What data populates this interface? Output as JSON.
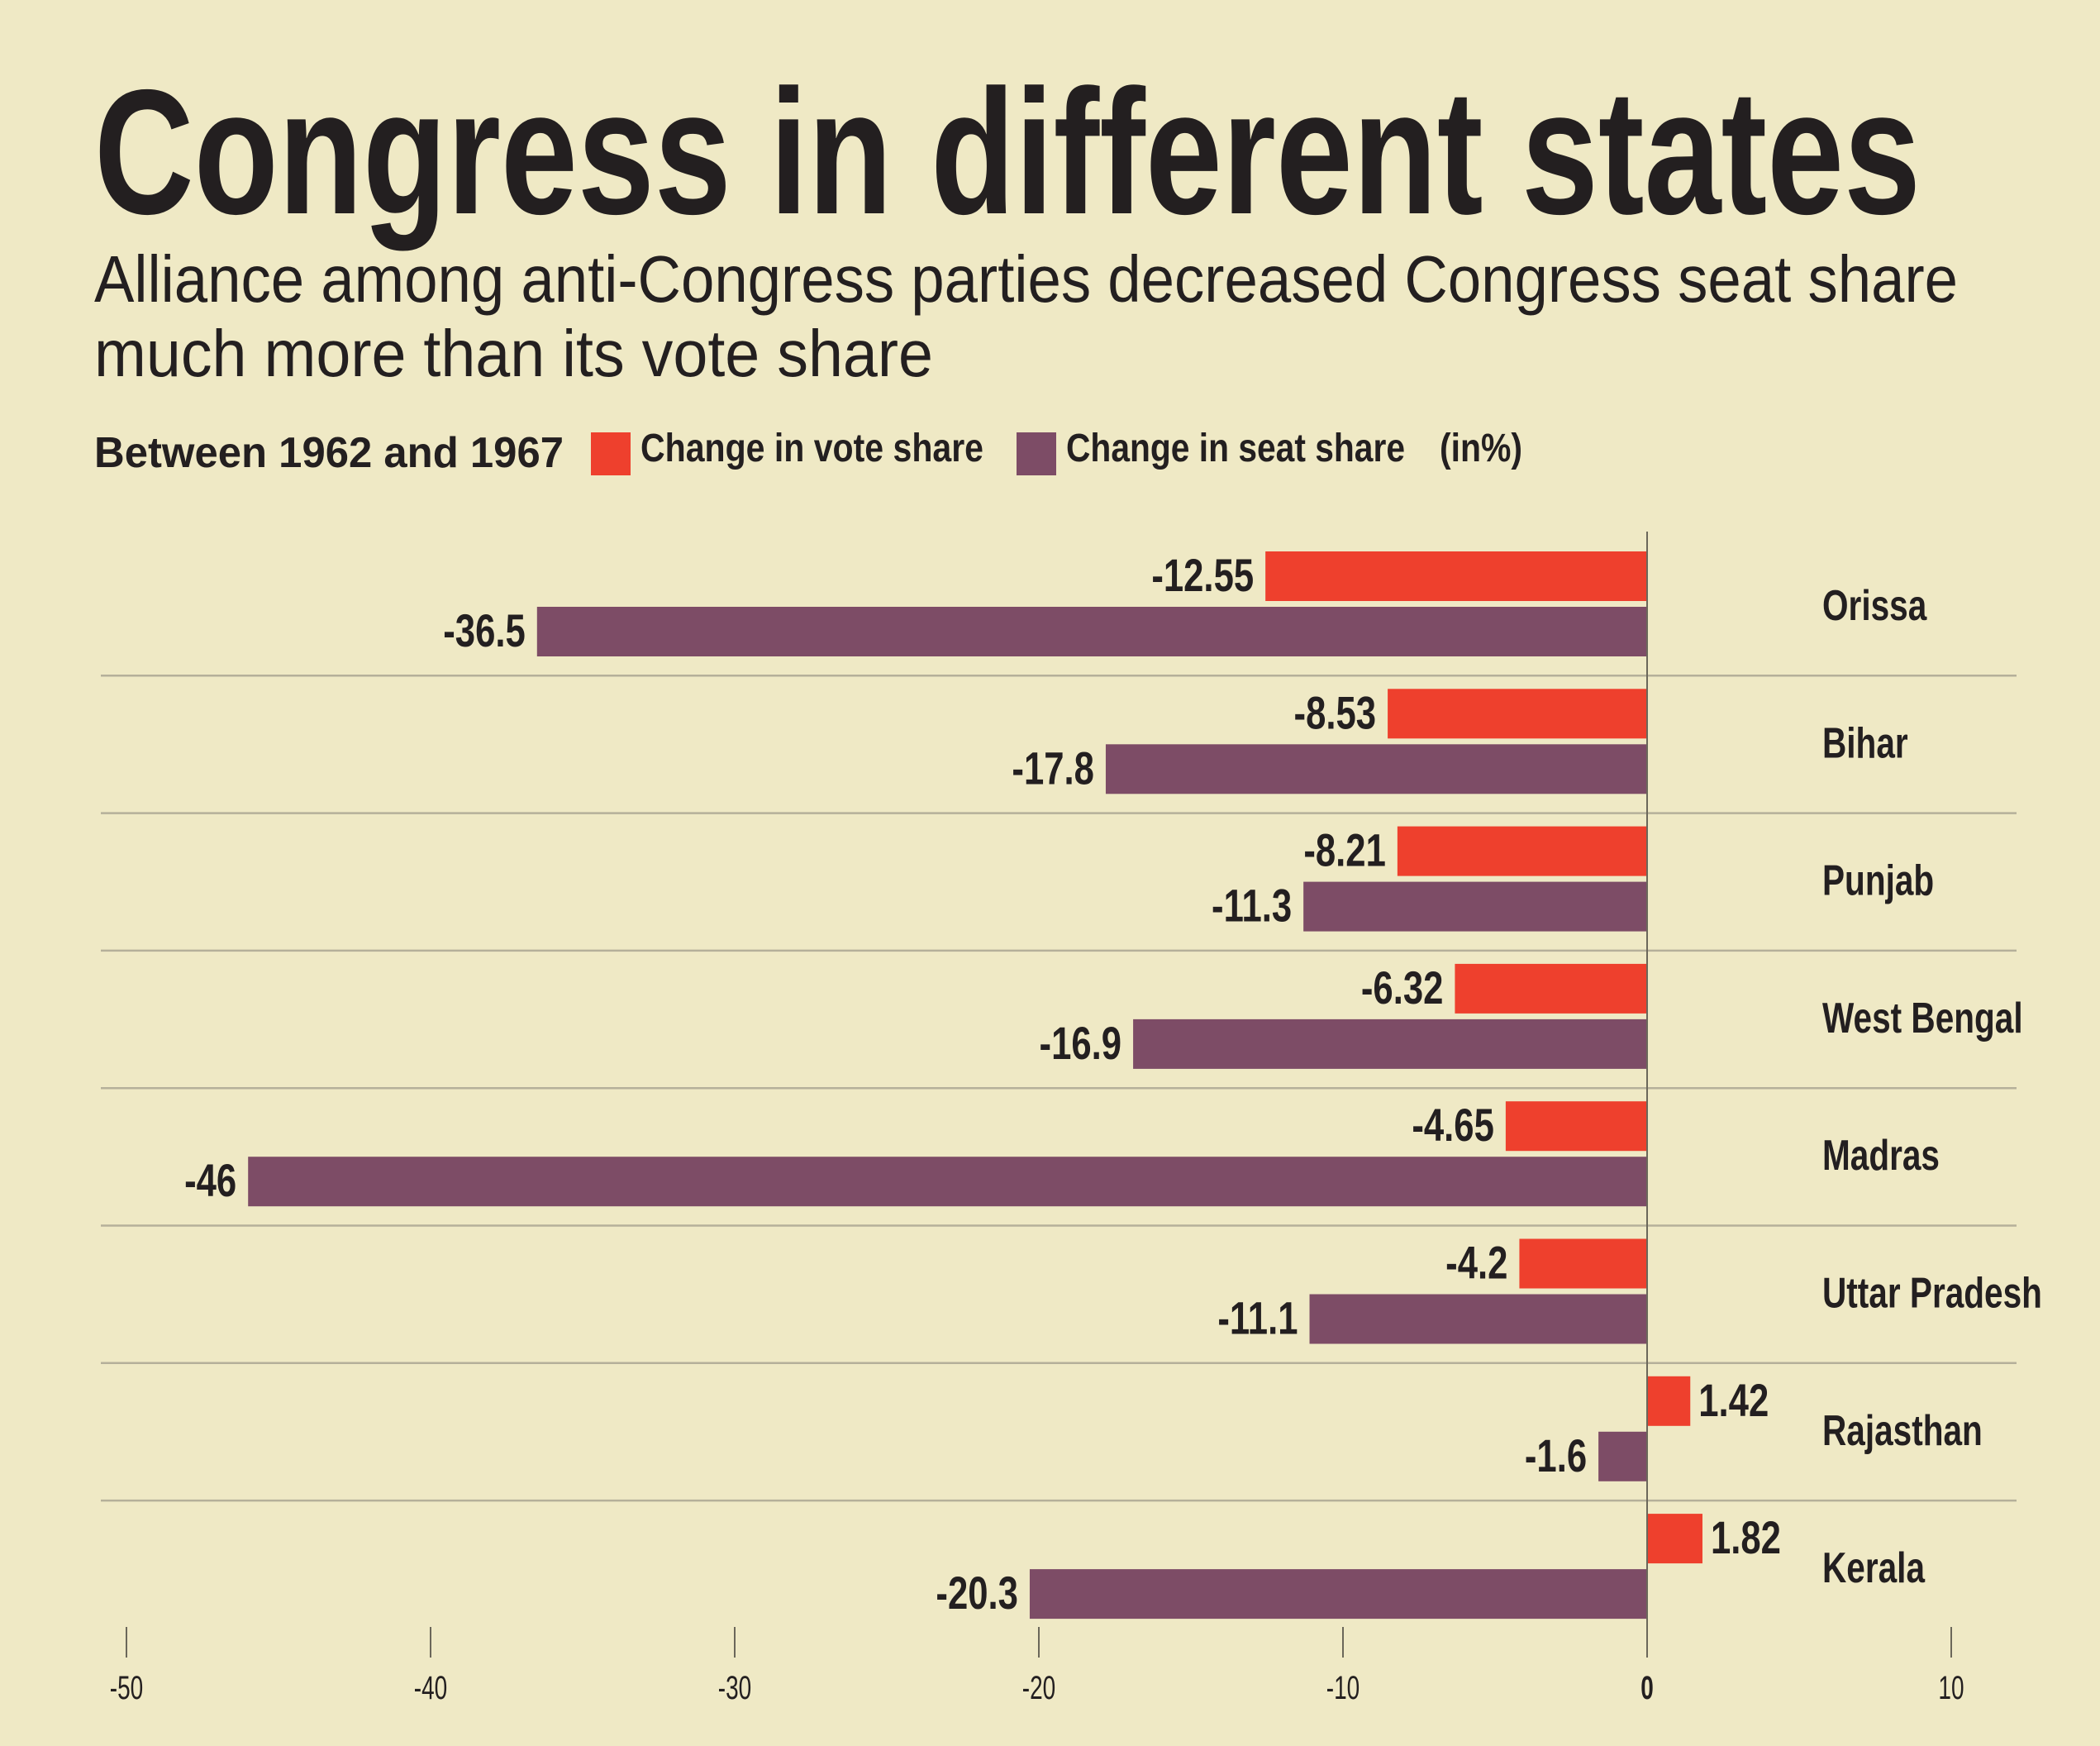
{
  "title": "Congress in different states",
  "subtitle_line1": "Alliance among anti-Congress parties decreased Congress seat share",
  "subtitle_line2": "much more than its vote share",
  "period_label": "Between 1962 and 1967",
  "unit_label": "(in%)",
  "colors": {
    "background": "#efe9c5",
    "vote": "#ee402d",
    "seat": "#7d4c66",
    "grid": "#b5b09a"
  },
  "chart_data": {
    "type": "bar",
    "orientation": "horizontal",
    "categories": [
      "Orissa",
      "Bihar",
      "Punjab",
      "West Bengal",
      "Madras",
      "Uttar Pradesh",
      "Rajasthan",
      "Kerala"
    ],
    "series": [
      {
        "name": "Change in vote share",
        "values": [
          -12.55,
          -8.53,
          -8.21,
          -6.32,
          -4.65,
          -4.2,
          1.42,
          1.82
        ]
      },
      {
        "name": "Change in seat share",
        "values": [
          -36.5,
          -17.8,
          -11.3,
          -16.9,
          -46,
          -11.1,
          -1.6,
          -20.3
        ]
      }
    ],
    "data_labels": [
      [
        "-12.55",
        "-8.53",
        "-8.21",
        "-6.32",
        "-4.65",
        "-4.2",
        "1.42",
        "1.82"
      ],
      [
        "-36.5",
        "-17.8",
        "-11.3",
        "-16.9",
        "-46",
        "-11.1",
        "-1.6",
        "-20.3"
      ]
    ],
    "xlim": [
      -50,
      10
    ],
    "xticks": [
      "-50",
      "-40",
      "-30",
      "-20",
      "-10",
      "0",
      "10"
    ],
    "legend_placement": "top",
    "grid": false
  }
}
